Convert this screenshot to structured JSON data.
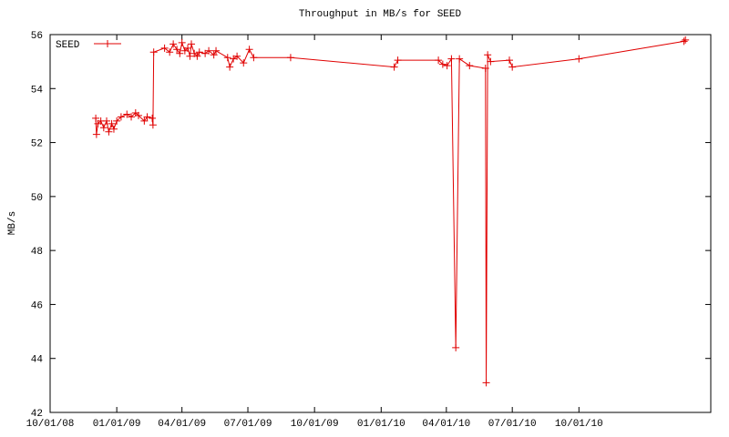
{
  "chart_data": {
    "type": "line",
    "title": "Throughput in MB/s for SEED",
    "y_label": "MB/s",
    "legend": "top-left",
    "xlim": [
      "2008-10-01",
      "2011-04-01"
    ],
    "xticks": [
      {
        "value": "2008-10-01",
        "label": "10/01/08"
      },
      {
        "value": "2009-01-01",
        "label": "01/01/09"
      },
      {
        "value": "2009-04-01",
        "label": "04/01/09"
      },
      {
        "value": "2009-07-01",
        "label": "07/01/09"
      },
      {
        "value": "2009-10-01",
        "label": "10/01/09"
      },
      {
        "value": "2010-01-01",
        "label": "01/01/10"
      },
      {
        "value": "2010-04-01",
        "label": "04/01/10"
      },
      {
        "value": "2010-07-01",
        "label": "07/01/10"
      },
      {
        "value": "2010-10-01",
        "label": "10/01/10"
      }
    ],
    "ylim": [
      42,
      56
    ],
    "yticks": [
      42,
      44,
      46,
      48,
      50,
      52,
      54,
      56
    ],
    "x": [
      "2008-12-03",
      "2008-12-04",
      "2008-12-06",
      "2008-12-10",
      "2008-12-14",
      "2008-12-18",
      "2008-12-21",
      "2008-12-25",
      "2008-12-28",
      "2009-01-01",
      "2009-01-07",
      "2009-01-15",
      "2009-01-21",
      "2009-01-27",
      "2009-01-31",
      "2009-02-08",
      "2009-02-12",
      "2009-02-19",
      "2009-02-20",
      "2009-02-21",
      "2009-03-08",
      "2009-03-15",
      "2009-03-20",
      "2009-03-25",
      "2009-03-29",
      "2009-04-01",
      "2009-04-05",
      "2009-04-09",
      "2009-04-12",
      "2009-04-14",
      "2009-04-18",
      "2009-04-22",
      "2009-04-25",
      "2009-05-03",
      "2009-05-08",
      "2009-05-15",
      "2009-05-18",
      "2009-06-03",
      "2009-06-06",
      "2009-06-11",
      "2009-06-16",
      "2009-06-25",
      "2009-07-03",
      "2009-07-09",
      "2009-08-29",
      "2010-01-19",
      "2010-01-24",
      "2010-03-21",
      "2010-03-27",
      "2010-04-02",
      "2010-04-08",
      "2010-04-14",
      "2010-04-19",
      "2010-05-03",
      "2010-05-25",
      "2010-05-26",
      "2010-05-28",
      "2010-06-01",
      "2010-06-27",
      "2010-07-01",
      "2010-10-01",
      "2011-02-23",
      "2011-02-25"
    ],
    "series": [
      {
        "name": "SEED",
        "color": "#e00000",
        "values": [
          52.9,
          52.3,
          52.7,
          52.8,
          52.55,
          52.8,
          52.4,
          52.7,
          52.5,
          52.8,
          52.95,
          53.05,
          52.95,
          53.1,
          53.0,
          52.8,
          52.95,
          52.9,
          52.65,
          55.35,
          55.5,
          55.35,
          55.65,
          55.45,
          55.3,
          55.7,
          55.4,
          55.5,
          55.2,
          55.65,
          55.3,
          55.2,
          55.35,
          55.3,
          55.4,
          55.25,
          55.4,
          55.15,
          54.8,
          55.1,
          55.2,
          54.95,
          55.45,
          55.15,
          55.15,
          54.8,
          55.05,
          55.05,
          54.9,
          54.85,
          55.1,
          44.4,
          55.1,
          54.85,
          54.75,
          43.1,
          55.25,
          55.0,
          55.05,
          54.8,
          55.1,
          55.75,
          55.8
        ]
      }
    ]
  }
}
